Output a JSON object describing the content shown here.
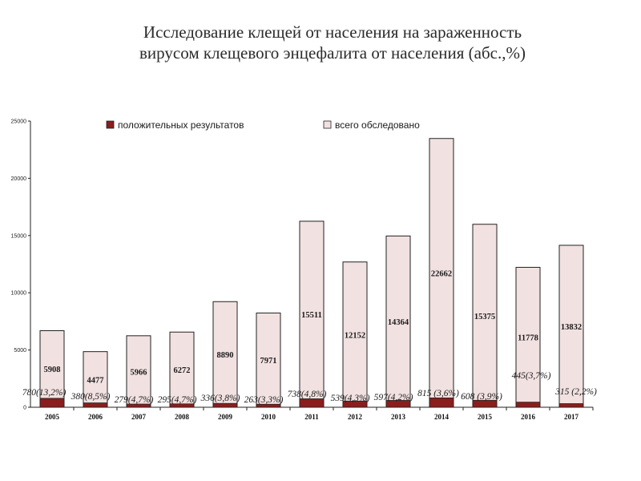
{
  "title": {
    "line1": "Исследование клещей от населения на зараженность",
    "line2": "вирусом клещевого энцефалита от населения (абс.,%)"
  },
  "colors": {
    "total_fill": "#f2e1e1",
    "positive_fill": "#8b1d1d",
    "bar_stroke": "#222222",
    "axis": "#222222"
  },
  "chart_data": {
    "type": "bar",
    "title": "",
    "xlabel": "",
    "ylabel": "",
    "ylim": [
      0,
      25000
    ],
    "yticks": [
      "0",
      "5000",
      "10000",
      "15000",
      "20000",
      "25000"
    ],
    "grid": false,
    "legend_position": "top",
    "categories": [
      "2005",
      "2006",
      "2007",
      "2008",
      "2009",
      "2010",
      "2011",
      "2012",
      "2013",
      "2014",
      "2015",
      "2016",
      "2017"
    ],
    "series": [
      {
        "name": "положительных результатов",
        "key": "positive",
        "values": [
          780,
          380,
          279,
          295,
          336,
          263,
          738,
          539,
          597,
          815,
          608,
          445,
          315
        ],
        "labels": [
          "780(13,2%)",
          "380(8,5%)",
          "279(4,7%)",
          "295(4,7%)",
          "336(3,8%)",
          "263(3,3%)",
          "738(4,8%)",
          "539(4,3%)",
          "597(4,2%)",
          "815 (3,6%)",
          "608 (3,9%)",
          "445(3,7%)",
          "315 (2,2%)"
        ]
      },
      {
        "name": "всего обследовано",
        "key": "total",
        "values": [
          6688,
          4857,
          6245,
          6567,
          9226,
          8234,
          16249,
          12691,
          14961,
          23477,
          15983,
          12223,
          14147
        ],
        "labels": [
          "5908",
          "4477",
          "5966",
          "6272",
          "8890",
          "7971",
          "15511",
          "12152",
          "14364",
          "22662",
          "15375",
          "11778",
          "13832"
        ]
      }
    ]
  }
}
